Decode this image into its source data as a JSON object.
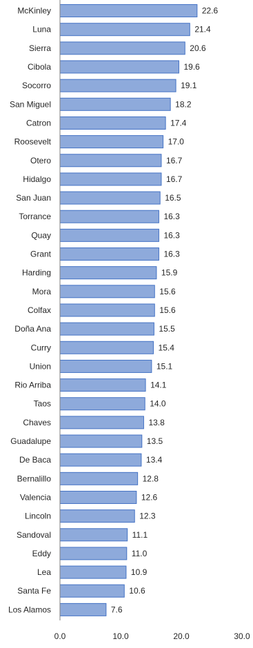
{
  "chart_data": {
    "type": "bar",
    "orientation": "horizontal",
    "categories": [
      "McKinley",
      "Luna",
      "Sierra",
      "Cibola",
      "Socorro",
      "San Miguel",
      "Catron",
      "Roosevelt",
      "Otero",
      "Hidalgo",
      "San Juan",
      "Torrance",
      "Quay",
      "Grant",
      "Harding",
      "Mora",
      "Colfax",
      "Doña Ana",
      "Curry",
      "Union",
      "Rio Arriba",
      "Taos",
      "Chaves",
      "Guadalupe",
      "De Baca",
      "Bernalillo",
      "Valencia",
      "Lincoln",
      "Sandoval",
      "Eddy",
      "Lea",
      "Santa Fe",
      "Los Alamos"
    ],
    "values": [
      22.6,
      21.4,
      20.6,
      19.6,
      19.1,
      18.2,
      17.4,
      17.0,
      16.7,
      16.7,
      16.5,
      16.3,
      16.3,
      16.3,
      15.9,
      15.6,
      15.6,
      15.5,
      15.4,
      15.1,
      14.1,
      14.0,
      13.8,
      13.5,
      13.4,
      12.8,
      12.6,
      12.3,
      11.1,
      11.0,
      10.9,
      10.6,
      7.6
    ],
    "value_labels": [
      "22.6",
      "21.4",
      "20.6",
      "19.6",
      "19.1",
      "18.2",
      "17.4",
      "17.0",
      "16.7",
      "16.7",
      "16.5",
      "16.3",
      "16.3",
      "16.3",
      "15.9",
      "15.6",
      "15.6",
      "15.5",
      "15.4",
      "15.1",
      "14.1",
      "14.0",
      "13.8",
      "13.5",
      "13.4",
      "12.8",
      "12.6",
      "12.3",
      "11.1",
      "11.0",
      "10.9",
      "10.6",
      "7.6"
    ],
    "xlim": [
      0,
      30
    ],
    "x_ticks": [
      "0.0",
      "10.0",
      "20.0",
      "30.0"
    ],
    "title": "",
    "xlabel": "",
    "ylabel": "",
    "grid": false,
    "data_labels": true,
    "colors": {
      "bar_fill": "#8eaadb",
      "bar_stroke": "#4472c4",
      "axis": "#808080",
      "text": "#262626"
    }
  }
}
